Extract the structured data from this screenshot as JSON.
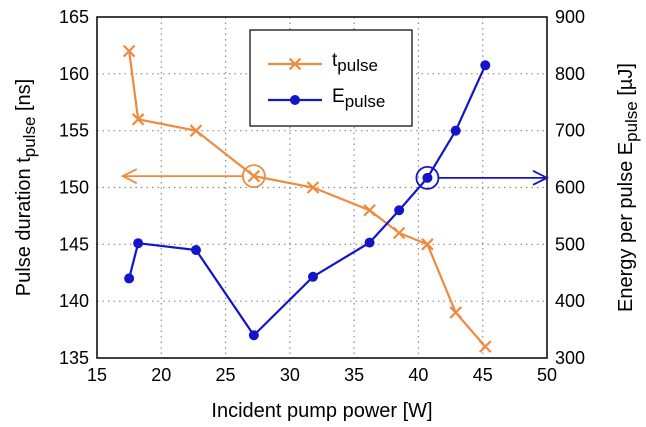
{
  "chart_data": {
    "type": "line",
    "title": "",
    "xlabel": "Incident pump power [W]",
    "ylabel_left": {
      "main": "Pulse duration t",
      "sub": "pulse",
      "unit": " [ns]"
    },
    "ylabel_right": {
      "main": "Energy per pulse E",
      "sub": "pulse",
      "unit": " [µJ]"
    },
    "xlim": [
      15,
      50
    ],
    "ylim_left": [
      135,
      165
    ],
    "ylim_right": [
      300,
      900
    ],
    "x_ticks": [
      "15",
      "20",
      "25",
      "30",
      "35",
      "40",
      "45",
      "50"
    ],
    "y_ticks_left": [
      "135",
      "140",
      "145",
      "150",
      "155",
      "160",
      "165"
    ],
    "y_ticks_right": [
      "300",
      "400",
      "500",
      "600",
      "700",
      "800",
      "900"
    ],
    "grid": true,
    "legend_position": "top-center",
    "series": [
      {
        "name": "t",
        "name_sub": "pulse",
        "axis": "left",
        "color": "#f08a3c",
        "marker": "x",
        "x": [
          17.5,
          18.2,
          22.7,
          27.2,
          31.8,
          36.2,
          38.5,
          40.7,
          42.9,
          45.2
        ],
        "y": [
          162,
          156,
          155,
          151,
          150,
          148,
          146,
          145,
          139,
          136
        ]
      },
      {
        "name": "E",
        "name_sub": "pulse",
        "axis": "right",
        "color": "#1414c8",
        "marker": "circle",
        "x": [
          17.5,
          18.2,
          22.7,
          27.2,
          31.8,
          36.2,
          38.5,
          40.7,
          42.9,
          45.2
        ],
        "y": [
          440,
          502,
          490,
          340,
          443,
          503,
          560,
          617,
          700,
          815
        ]
      }
    ],
    "annotations": [
      {
        "series": "t",
        "at_x": 27.2,
        "at_y": 151,
        "arrow_to_x": 17.0,
        "points_to": "left axis"
      },
      {
        "series": "E",
        "at_x": 40.7,
        "at_y": 617,
        "arrow_to_x": 50.0,
        "points_to": "right axis"
      }
    ]
  }
}
